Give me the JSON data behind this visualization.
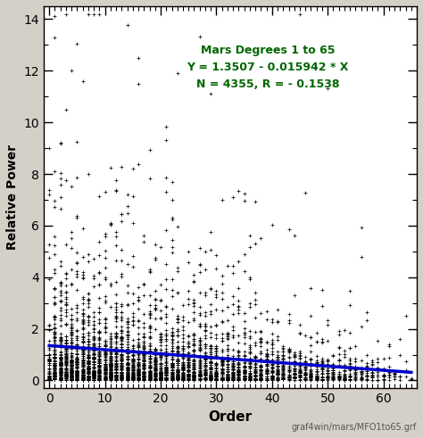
{
  "title_line1": "Mars Degrees 1 to 65",
  "title_line2": "Y = 1.3507 - 0.015942 * X",
  "title_line3": "N = 4355, R = - 0.1538",
  "xlabel": "Order",
  "ylabel": "Relative Power",
  "footnote": "graf4win/mars/MFO1to65.grf",
  "xlim": [
    -1,
    66
  ],
  "ylim": [
    -0.3,
    14.5
  ],
  "yticks": [
    0,
    2,
    4,
    6,
    8,
    10,
    12,
    14
  ],
  "xticks": [
    0,
    10,
    20,
    30,
    40,
    50,
    60
  ],
  "regression_intercept": 1.3507,
  "regression_slope": -0.015942,
  "scatter_color": "#000000",
  "line_color": "#0000cc",
  "title_color": "#006600",
  "background_color": "#d4d0c8",
  "axes_background": "#ffffff",
  "seed": 12345,
  "degree_min": 1,
  "degree_max": 65
}
